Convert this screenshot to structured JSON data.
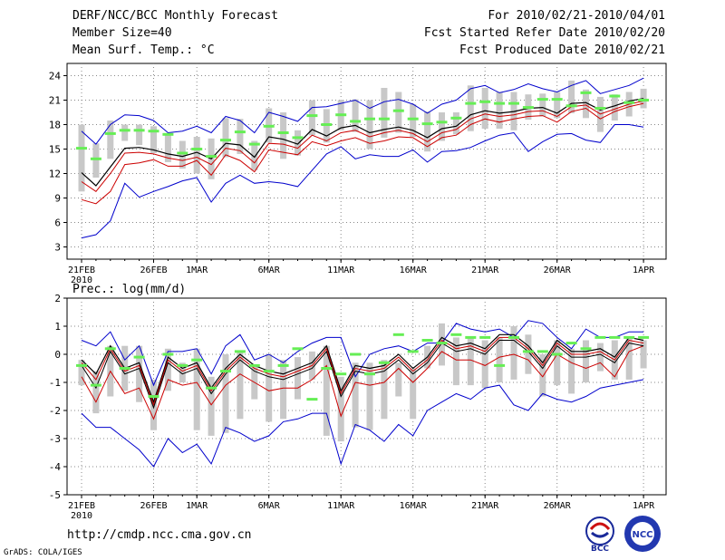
{
  "header": {
    "title": "DERF/NCC/BCC Monthly Forecast",
    "member": "Member Size=40",
    "variable": "Mean Surf. Temp.: °C",
    "period": "For 2010/02/21-2010/04/01",
    "started": "Fcst Started Refer Date 2010/02/20",
    "produced": "Fcst Produced Date 2010/02/21"
  },
  "footer": {
    "url": "http://cmdp.ncc.cma.gov.cn",
    "credit": "GrADS: COLA/IGES",
    "logo_left_text": "BCC",
    "logo_right_text": "NCC"
  },
  "colors": {
    "max_line": "#0000cc",
    "min_line": "#0000cc",
    "mean_line": "#000000",
    "mid_line": "#cc0000",
    "bar": "#c8c8c8",
    "marker": "#66ee55",
    "grid": "#888888"
  },
  "chart_data": [
    {
      "type": "line",
      "title": "Mean Surf. Temp.: °C",
      "ylim": [
        1.5,
        25.5
      ],
      "yticks": [
        3,
        6,
        9,
        12,
        15,
        18,
        21,
        24
      ],
      "xticks": [
        {
          "day": 0,
          "label": "21FEB",
          "sub": "2010"
        },
        {
          "day": 5,
          "label": "26FEB",
          "sub": ""
        },
        {
          "day": 8,
          "label": "1MAR",
          "sub": ""
        },
        {
          "day": 13,
          "label": "6MAR",
          "sub": ""
        },
        {
          "day": 18,
          "label": "11MAR",
          "sub": ""
        },
        {
          "day": 23,
          "label": "16MAR",
          "sub": ""
        },
        {
          "day": 28,
          "label": "21MAR",
          "sub": ""
        },
        {
          "day": 33,
          "label": "26MAR",
          "sub": ""
        },
        {
          "day": 39,
          "label": "1APR",
          "sub": ""
        }
      ],
      "series": [
        {
          "name": "max",
          "values": [
            17.2,
            15.6,
            18.0,
            19.2,
            19.1,
            18.5,
            17.0,
            17.2,
            17.8,
            17.0,
            19.0,
            18.5,
            17.0,
            19.5,
            19.0,
            18.4,
            20.1,
            20.2,
            20.6,
            21.0,
            20.0,
            20.8,
            21.1,
            20.5,
            19.4,
            20.5,
            21.0,
            22.4,
            22.8,
            21.9,
            22.3,
            23.0,
            22.4,
            22.0,
            22.8,
            23.4,
            21.8,
            22.3,
            22.8,
            23.7
          ]
        },
        {
          "name": "mean",
          "values": [
            12.1,
            10.5,
            12.8,
            15.1,
            15.2,
            14.9,
            14.4,
            14.1,
            14.6,
            13.8,
            15.7,
            15.5,
            14.0,
            16.5,
            16.2,
            15.6,
            17.4,
            16.6,
            17.6,
            17.9,
            17.0,
            17.4,
            17.7,
            17.3,
            16.4,
            17.5,
            17.8,
            19.2,
            19.7,
            19.4,
            19.6,
            20.0,
            20.1,
            19.4,
            20.6,
            20.7,
            19.8,
            20.3,
            20.9,
            21.2
          ]
        },
        {
          "name": "mid",
          "values": [
            11.0,
            9.8,
            12.0,
            14.5,
            14.6,
            14.4,
            13.9,
            13.6,
            14.0,
            13.1,
            15.1,
            14.8,
            13.3,
            15.7,
            15.6,
            15.1,
            16.7,
            16.0,
            17.0,
            17.3,
            16.5,
            17.0,
            17.3,
            16.9,
            15.9,
            17.0,
            17.4,
            18.7,
            19.3,
            19.0,
            19.2,
            19.6,
            19.7,
            19.0,
            20.2,
            20.4,
            19.3,
            19.9,
            20.5,
            20.9
          ]
        },
        {
          "name": "ref",
          "values": [
            8.8,
            8.3,
            9.8,
            13.1,
            13.3,
            13.7,
            12.9,
            12.9,
            13.6,
            11.8,
            14.3,
            13.6,
            12.2,
            14.9,
            14.6,
            14.3,
            15.9,
            15.4,
            16.0,
            16.4,
            15.7,
            16.0,
            16.5,
            16.4,
            15.3,
            16.4,
            16.7,
            18.0,
            18.7,
            18.3,
            18.7,
            19.0,
            19.1,
            18.3,
            19.6,
            20.0,
            18.7,
            19.6,
            20.2,
            20.6
          ]
        },
        {
          "name": "min",
          "values": [
            4.1,
            4.5,
            6.2,
            10.8,
            9.1,
            9.8,
            10.4,
            11.1,
            11.5,
            8.5,
            10.8,
            11.8,
            10.8,
            11.0,
            10.8,
            10.4,
            12.4,
            14.4,
            15.3,
            13.8,
            14.3,
            14.1,
            14.1,
            14.9,
            13.4,
            14.7,
            14.8,
            15.2,
            16.0,
            16.7,
            17.0,
            14.7,
            15.9,
            16.8,
            16.9,
            16.1,
            15.8,
            18.0,
            18.0,
            17.7
          ]
        }
      ],
      "bars": {
        "low": [
          9.8,
          11.5,
          13.8,
          16.0,
          15.5,
          14.5,
          13.4,
          12.6,
          12.0,
          11.3,
          14.0,
          14.4,
          12.4,
          15.8,
          13.8,
          14.2,
          16.7,
          15.8,
          17.3,
          17.1,
          15.0,
          16.4,
          17.0,
          16.5,
          14.7,
          16.0,
          16.8,
          17.2,
          17.5,
          17.5,
          17.3,
          18.6,
          19.0,
          18.8,
          19.4,
          18.8,
          17.1,
          18.5,
          19.0,
          20.0
        ],
        "high": [
          18.0,
          15.7,
          18.5,
          18.0,
          18.0,
          17.8,
          16.8,
          16.0,
          16.5,
          16.3,
          18.8,
          18.7,
          16.0,
          20.0,
          19.5,
          17.3,
          21.0,
          19.9,
          21.0,
          21.1,
          21.0,
          22.5,
          22.0,
          20.5,
          19.6,
          19.5,
          19.5,
          22.8,
          22.5,
          22.0,
          22.0,
          21.7,
          21.8,
          22.0,
          23.4,
          22.3,
          21.4,
          21.7,
          22.0,
          22.4
        ]
      },
      "markers": [
        15.1,
        13.8,
        16.9,
        17.3,
        17.3,
        17.2,
        16.8,
        14.5,
        15.0,
        14.1,
        16.1,
        17.1,
        15.6,
        17.8,
        17.0,
        16.4,
        19.1,
        18.0,
        19.2,
        18.4,
        18.7,
        18.7,
        19.7,
        18.7,
        18.1,
        18.3,
        18.8,
        20.6,
        20.8,
        20.6,
        20.6,
        20.1,
        21.1,
        21.1,
        20.3,
        21.9,
        20.0,
        21.5,
        20.7,
        21.0
      ]
    },
    {
      "type": "line",
      "title": "Prec.: log(mm/d)",
      "ylim": [
        -5,
        2
      ],
      "yticks": [
        -5,
        -4,
        -3,
        -2,
        -1,
        0,
        1,
        2
      ],
      "xticks": [
        {
          "day": 0,
          "label": "21FEB",
          "sub": "2010"
        },
        {
          "day": 5,
          "label": "26FEB",
          "sub": ""
        },
        {
          "day": 8,
          "label": "1MAR",
          "sub": ""
        },
        {
          "day": 13,
          "label": "6MAR",
          "sub": ""
        },
        {
          "day": 18,
          "label": "11MAR",
          "sub": ""
        },
        {
          "day": 23,
          "label": "16MAR",
          "sub": ""
        },
        {
          "day": 28,
          "label": "21MAR",
          "sub": ""
        },
        {
          "day": 33,
          "label": "26MAR",
          "sub": ""
        },
        {
          "day": 39,
          "label": "1APR",
          "sub": ""
        }
      ],
      "series": [
        {
          "name": "max",
          "values": [
            0.5,
            0.3,
            0.8,
            -0.2,
            0.3,
            -1.1,
            0.1,
            0.1,
            0.2,
            -0.7,
            0.3,
            0.7,
            -0.2,
            0.0,
            -0.3,
            0.1,
            0.4,
            0.6,
            0.6,
            -0.8,
            0.0,
            0.2,
            0.3,
            0.1,
            0.4,
            0.4,
            1.1,
            0.9,
            0.8,
            0.9,
            0.6,
            1.2,
            1.1,
            0.6,
            0.2,
            0.9,
            0.6,
            0.6,
            0.8,
            0.8
          ]
        },
        {
          "name": "mean",
          "values": [
            -0.2,
            -0.7,
            0.3,
            -0.5,
            -0.3,
            -1.7,
            -0.1,
            -0.5,
            -0.3,
            -1.2,
            -0.5,
            0.0,
            -0.4,
            -0.6,
            -0.7,
            -0.5,
            -0.3,
            0.3,
            -1.3,
            -0.4,
            -0.5,
            -0.4,
            0.0,
            -0.5,
            -0.1,
            0.6,
            0.3,
            0.4,
            0.2,
            0.7,
            0.7,
            0.3,
            -0.3,
            0.5,
            0.1,
            0.1,
            0.2,
            -0.1,
            0.6,
            0.5
          ]
        },
        {
          "name": "mid",
          "values": [
            -0.3,
            -0.9,
            0.2,
            -0.6,
            -0.4,
            -1.8,
            -0.2,
            -0.6,
            -0.4,
            -1.3,
            -0.6,
            -0.1,
            -0.5,
            -0.7,
            -0.8,
            -0.6,
            -0.4,
            0.2,
            -1.4,
            -0.5,
            -0.6,
            -0.5,
            -0.1,
            -0.6,
            -0.2,
            0.5,
            0.2,
            0.3,
            0.1,
            0.6,
            0.6,
            0.2,
            -0.4,
            0.4,
            0.0,
            0.0,
            0.1,
            -0.2,
            0.5,
            0.4
          ]
        },
        {
          "name": "ref",
          "values": [
            -0.8,
            -1.7,
            -0.6,
            -1.4,
            -1.2,
            -2.3,
            -0.9,
            -1.1,
            -1.0,
            -1.8,
            -1.1,
            -0.7,
            -1.0,
            -1.3,
            -1.2,
            -1.2,
            -0.9,
            -0.4,
            -2.2,
            -1.0,
            -1.1,
            -1.0,
            -0.5,
            -1.0,
            -0.5,
            0.1,
            -0.2,
            -0.2,
            -0.4,
            -0.1,
            0.0,
            -0.2,
            -0.8,
            0.0,
            -0.3,
            -0.5,
            -0.3,
            -0.8,
            0.1,
            0.3
          ]
        },
        {
          "name": "min",
          "values": [
            -2.1,
            -2.6,
            -2.6,
            -3.0,
            -3.4,
            -4.0,
            -3.0,
            -3.5,
            -3.2,
            -3.9,
            -2.6,
            -2.8,
            -3.1,
            -2.9,
            -2.4,
            -2.3,
            -2.1,
            -2.1,
            -3.9,
            -2.5,
            -2.7,
            -3.1,
            -2.5,
            -2.9,
            -2.0,
            -1.7,
            -1.4,
            -1.6,
            -1.2,
            -1.1,
            -1.8,
            -2.0,
            -1.4,
            -1.6,
            -1.7,
            -1.5,
            -1.2,
            -1.1,
            -1.0,
            -0.9
          ]
        },
        {
          "name": "mid2",
          "values": [
            -0.4,
            -1.2,
            0.1,
            -0.7,
            -0.5,
            -1.9,
            -0.3,
            -0.7,
            -0.5,
            -1.4,
            -0.7,
            -0.2,
            -0.6,
            -0.8,
            -0.9,
            -0.7,
            -0.5,
            0.1,
            -1.5,
            -0.6,
            -0.7,
            -0.6,
            -0.2,
            -0.7,
            -0.3,
            0.4,
            0.1,
            0.2,
            0.0,
            0.5,
            0.5,
            0.1,
            -0.5,
            0.3,
            -0.1,
            -0.1,
            0.0,
            -0.3,
            0.4,
            0.3
          ]
        }
      ],
      "bars": {
        "low": [
          -1.1,
          -2.1,
          -1.5,
          -1.3,
          -1.7,
          -2.7,
          -1.3,
          -1.0,
          -2.7,
          -2.9,
          -2.8,
          -2.3,
          -1.6,
          -2.4,
          -2.3,
          -1.6,
          -0.9,
          -2.9,
          -3.1,
          -2.6,
          -2.7,
          -2.3,
          -1.5,
          -2.3,
          -0.5,
          -0.4,
          -1.1,
          -1.1,
          -1.2,
          -1.0,
          -0.9,
          -0.7,
          -1.5,
          -1.1,
          -1.4,
          -1.0,
          -0.6,
          -0.9,
          -0.9,
          -0.5
        ],
        "high": [
          -0.2,
          -0.6,
          0.3,
          0.3,
          0.3,
          -0.9,
          0.2,
          -0.3,
          0.2,
          -0.8,
          0.0,
          0.1,
          -0.4,
          0.0,
          -0.2,
          -0.1,
          0.1,
          0.3,
          -0.8,
          -0.3,
          -0.3,
          -0.2,
          -0.3,
          -0.5,
          0.3,
          1.1,
          0.6,
          0.6,
          0.5,
          0.6,
          1.0,
          0.7,
          0.0,
          0.5,
          0.2,
          0.5,
          0.4,
          0.5,
          0.6,
          0.5
        ]
      },
      "markers": [
        -0.4,
        -1.1,
        0.2,
        -0.5,
        -0.1,
        -1.5,
        0.0,
        -0.4,
        -0.2,
        -1.2,
        -0.6,
        0.1,
        -0.4,
        -0.6,
        -0.4,
        0.2,
        -1.6,
        -0.5,
        -0.7,
        0.0,
        -0.7,
        -0.3,
        0.7,
        0.1,
        0.5,
        0.4,
        0.7,
        0.6,
        0.6,
        -0.4,
        0.6,
        0.1,
        0.1,
        0.0,
        0.4,
        0.2,
        0.6,
        0.6,
        0.6,
        0.6
      ]
    }
  ]
}
